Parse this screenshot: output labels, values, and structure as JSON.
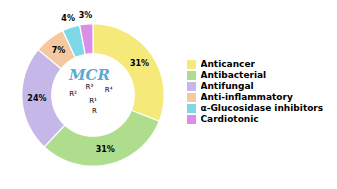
{
  "chart_data": {
    "type": "donut",
    "categories": [
      "Anticancer",
      "Antibacterial",
      "Antifungal",
      "Anti-inflammatory",
      "α-Glucosidase inhibitors",
      "Cardiotonic"
    ],
    "values": [
      31,
      31,
      24,
      7,
      4,
      3
    ],
    "value_labels": [
      "31%",
      "31%",
      "24%",
      "7%",
      "4%",
      "3%"
    ],
    "colors": [
      "#f5e97a",
      "#aedd8e",
      "#c5b8e8",
      "#f5c9a0",
      "#7fd8e8",
      "#d98ee8"
    ],
    "data_labels": true,
    "legend": "right",
    "annotations": [
      {
        "text": "MCR",
        "color": "#5baad4"
      },
      {
        "text": "R²"
      },
      {
        "text": "R¹"
      },
      {
        "text": "R³"
      },
      {
        "text": "R⁴"
      },
      {
        "text": "R"
      }
    ]
  }
}
